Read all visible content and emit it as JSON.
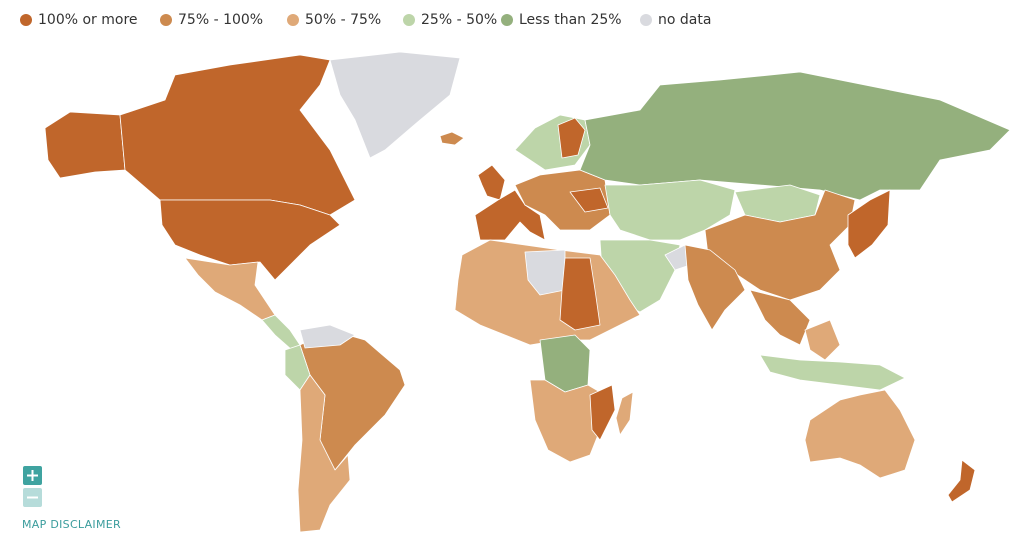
{
  "legend": [
    {
      "label": "100% or more",
      "color": "#c0662b"
    },
    {
      "label": "75% - 100%",
      "color": "#cd8a4f"
    },
    {
      "label": "50% - 75%",
      "color": "#dfa978"
    },
    {
      "label": "25% - 50%",
      "color": "#bdd5a9"
    },
    {
      "label": "Less than 25%",
      "color": "#94b07d"
    },
    {
      "label": "no data",
      "color": "#d9dadf"
    }
  ],
  "disclaimer": "MAP DISCLAIMER"
}
